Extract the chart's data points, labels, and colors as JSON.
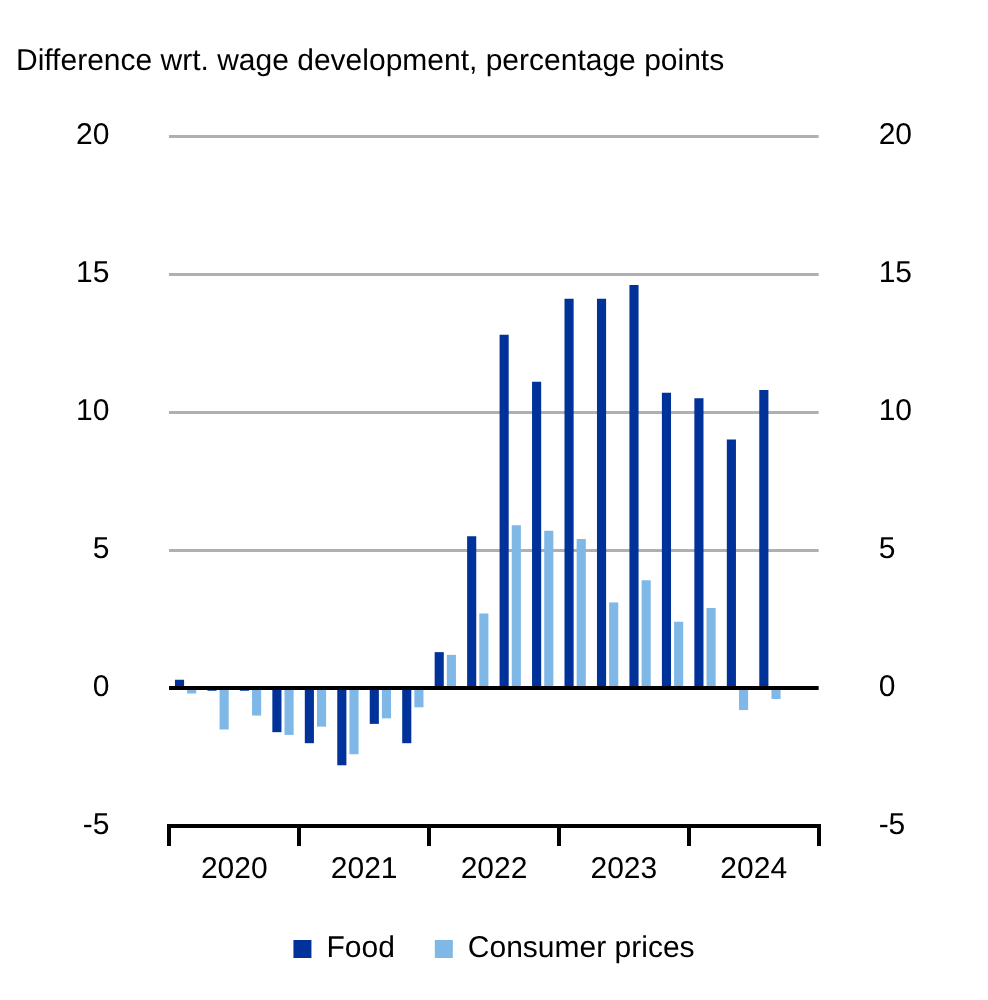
{
  "chart_data": {
    "type": "bar",
    "ylabel": "Difference wrt. wage development, percentage points",
    "x": [
      2020.125,
      2020.375,
      2020.625,
      2020.875,
      2021.125,
      2021.375,
      2021.625,
      2021.875,
      2022.125,
      2022.375,
      2022.625,
      2022.875,
      2023.125,
      2023.375,
      2023.625,
      2023.875,
      2024.125,
      2024.375,
      2024.625
    ],
    "series": [
      {
        "name": "Food",
        "color": "#003299",
        "values": [
          0.3,
          -0.1,
          -0.1,
          -1.6,
          -2.0,
          -2.8,
          -1.3,
          -2.0,
          1.3,
          5.5,
          12.8,
          11.1,
          14.1,
          14.1,
          14.6,
          10.7,
          10.5,
          9.0,
          10.8
        ]
      },
      {
        "name": "Consumer prices",
        "color": "#7fb8e6",
        "values": [
          -0.2,
          -1.5,
          -1.0,
          -1.7,
          -1.4,
          -2.4,
          -1.1,
          -0.7,
          1.2,
          2.7,
          5.9,
          5.7,
          5.4,
          3.1,
          3.9,
          2.4,
          2.9,
          -0.8,
          -0.4
        ]
      }
    ],
    "xlim": [
      2020,
      2025
    ],
    "xticks": [
      {
        "value": 2020,
        "label": null
      },
      {
        "value": 2020.5,
        "label": "2020"
      },
      {
        "value": 2021,
        "label": null
      },
      {
        "value": 2021.5,
        "label": "2021"
      },
      {
        "value": 2022,
        "label": null
      },
      {
        "value": 2022.5,
        "label": "2022"
      },
      {
        "value": 2023,
        "label": null
      },
      {
        "value": 2023.5,
        "label": "2023"
      },
      {
        "value": 2024,
        "label": null
      },
      {
        "value": 2024.5,
        "label": "2024"
      },
      {
        "value": 2025,
        "label": null
      }
    ],
    "ylim": [
      -5,
      20
    ],
    "yticks": [
      -5,
      0,
      5,
      10,
      15,
      20
    ],
    "y2lim": [
      -5,
      20
    ],
    "y2ticks": [
      -5,
      0,
      5,
      10,
      15,
      20
    ],
    "grid": "y",
    "legend": "bottom"
  }
}
